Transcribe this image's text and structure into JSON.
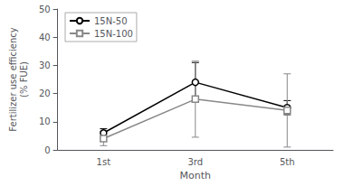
{
  "chart_data": {
    "type": "line",
    "categories": [
      "1st",
      "3rd",
      "5th"
    ],
    "series": [
      {
        "name": "15N-50",
        "color": "#000000",
        "marker": "circle",
        "line_style": "solid",
        "values": [
          6.0,
          24.0,
          15.0
        ],
        "errors": [
          1.5,
          7.0,
          2.5
        ]
      },
      {
        "name": "15N-100",
        "color": "#888888",
        "marker": "square",
        "line_style": "solid",
        "values": [
          4.0,
          18.0,
          14.0
        ],
        "errors": [
          2.5,
          13.5,
          13.0
        ]
      }
    ],
    "xlabel": "Month",
    "ylabel": "Fertilizer use efficiency\n(% FUE)",
    "ylim": [
      0,
      50
    ],
    "yticks": [
      0,
      10,
      20,
      30,
      40,
      50
    ],
    "grid": false,
    "legend": "upper left"
  }
}
